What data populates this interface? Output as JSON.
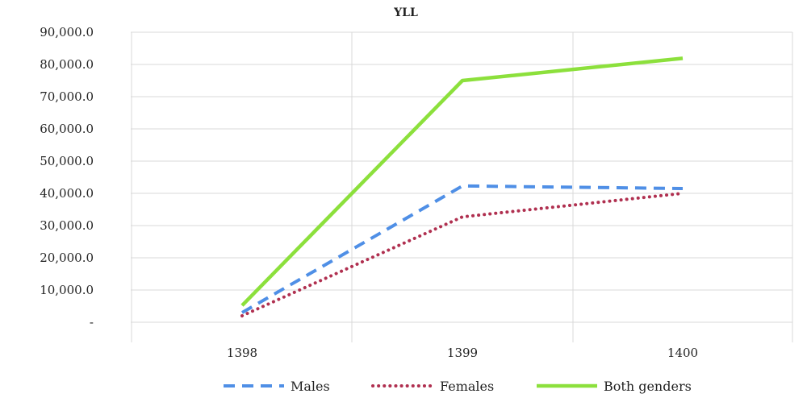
{
  "chart_data": {
    "type": "line",
    "title": "YLL",
    "xlabel": "",
    "ylabel": "",
    "categories": [
      "1398",
      "1399",
      "1400"
    ],
    "ylim": [
      0,
      90000
    ],
    "y_ticks": [
      0,
      10000,
      20000,
      30000,
      40000,
      50000,
      60000,
      70000,
      80000,
      90000
    ],
    "y_tick_labels": [
      "-",
      "10,000.0",
      "20,000.0",
      "30,000.0",
      "40,000.0",
      "50,000.0",
      "60,000.0",
      "70,000.0",
      "80,000.0",
      "90,000.0"
    ],
    "grid": true,
    "legend_position": "bottom",
    "series": [
      {
        "name": "Males",
        "values": [
          3000,
          42300,
          41500
        ],
        "color": "#4f8fe6",
        "style": "dashed"
      },
      {
        "name": "Females",
        "values": [
          2000,
          32700,
          40000
        ],
        "color": "#b03050",
        "style": "dotted"
      },
      {
        "name": "Both genders",
        "values": [
          5200,
          75000,
          81900
        ],
        "color": "#8ce03c",
        "style": "solid"
      }
    ]
  }
}
